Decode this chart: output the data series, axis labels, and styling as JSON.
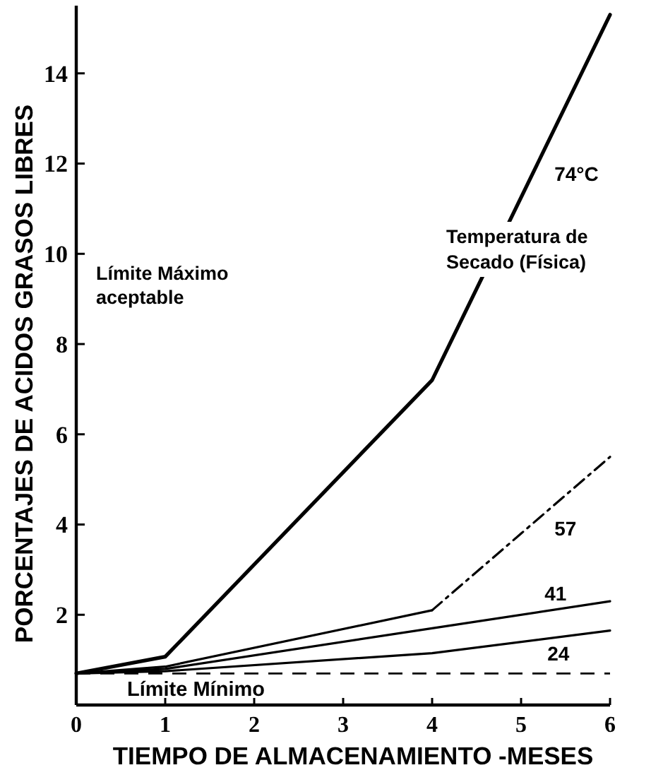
{
  "chart_data": {
    "type": "line",
    "xlabel": "TIEMPO DE ALMACENAMIENTO -MESES",
    "ylabel": "PORCENTAJES DE ACIDOS GRASOS LIBRES",
    "legend_title": "Temperatura de Secado (Física)",
    "annotations": [
      "Límite Máximo aceptable"
    ],
    "xlim": [
      0,
      6
    ],
    "xticks": [
      0,
      1,
      2,
      3,
      4,
      5,
      6
    ],
    "ylim": [
      0,
      15.5
    ],
    "yticks": [
      2,
      4,
      6,
      8,
      10,
      12,
      14
    ],
    "series": [
      {
        "name": "74°C",
        "color": "#000000",
        "x": [
          0,
          1,
          4,
          6
        ],
        "values": [
          0.7,
          1.07,
          7.2,
          15.3
        ]
      },
      {
        "color": "#000000",
        "x": [
          0,
          1,
          4
        ],
        "values": [
          0.7,
          0.85,
          2.1
        ]
      },
      {
        "name": "57",
        "color": "#000000",
        "x": [
          4,
          5,
          6
        ],
        "values": [
          2.1,
          3.8,
          5.5
        ],
        "line_style": "dashed"
      },
      {
        "name": "41",
        "color": "#000000",
        "x": [
          0,
          1,
          4,
          6
        ],
        "values": [
          0.7,
          0.8,
          1.7,
          2.3
        ]
      },
      {
        "name": "24",
        "color": "#000000",
        "x": [
          0,
          1,
          4,
          6
        ],
        "values": [
          0.7,
          0.75,
          1.15,
          1.65
        ]
      }
    ],
    "ref_lines": [
      {
        "axis": "y",
        "value": 0.7,
        "label": "Límite Mínimo",
        "line_style": "dashed"
      }
    ]
  }
}
